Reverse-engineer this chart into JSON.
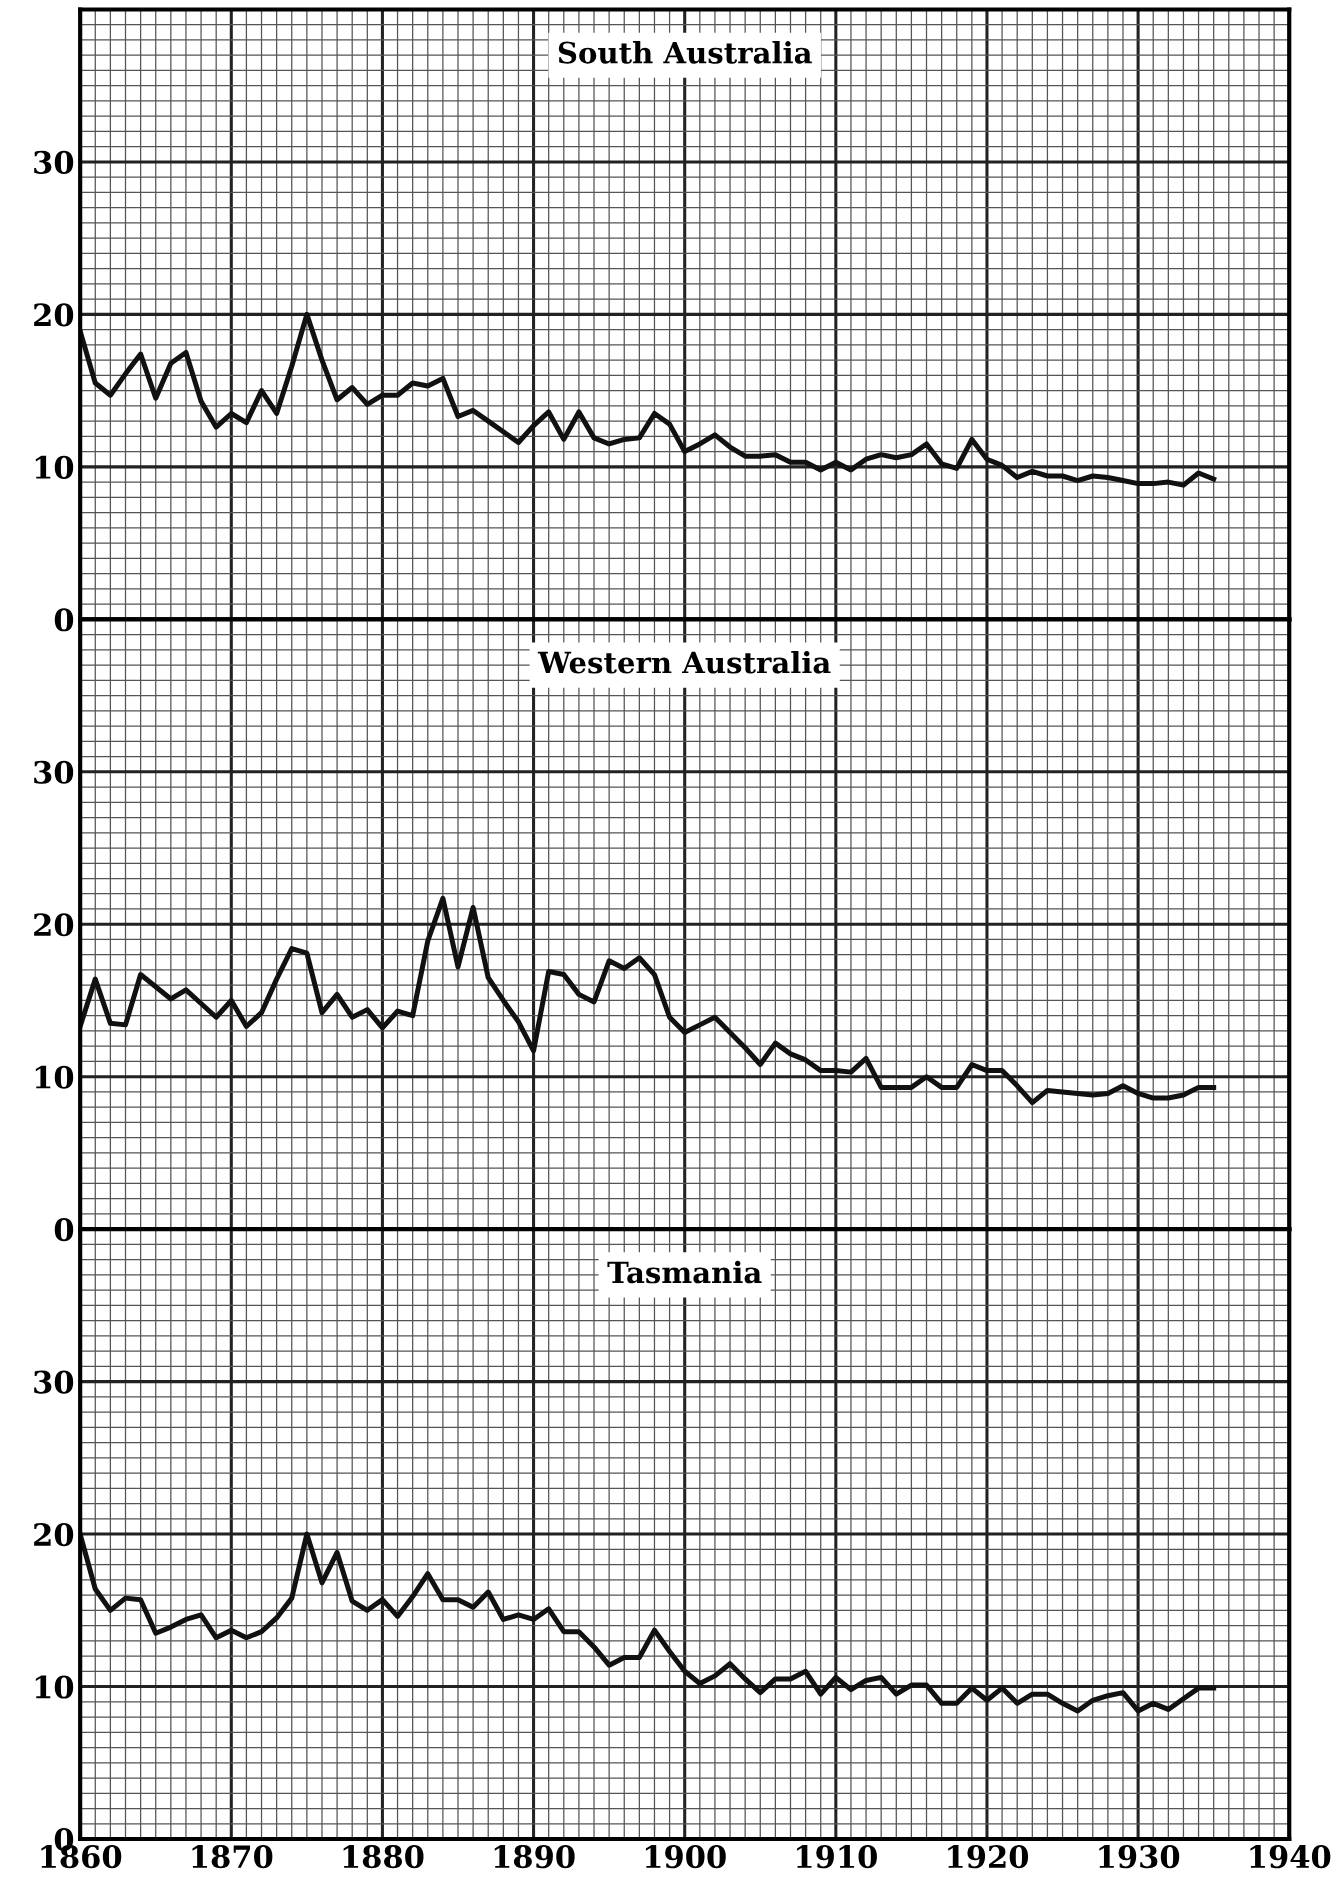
{
  "chart_data": [
    {
      "type": "line",
      "title": "South Australia",
      "x": [
        1860,
        1861,
        1862,
        1863,
        1864,
        1865,
        1866,
        1867,
        1868,
        1869,
        1870,
        1871,
        1872,
        1873,
        1874,
        1875,
        1876,
        1877,
        1878,
        1879,
        1880,
        1881,
        1882,
        1883,
        1884,
        1885,
        1886,
        1887,
        1888,
        1889,
        1890,
        1891,
        1892,
        1893,
        1894,
        1895,
        1896,
        1897,
        1898,
        1899,
        1900,
        1901,
        1902,
        1903,
        1904,
        1905,
        1906,
        1907,
        1908,
        1909,
        1910,
        1911,
        1912,
        1913,
        1914,
        1915,
        1916,
        1917,
        1918,
        1919,
        1920,
        1921,
        1922,
        1923,
        1924,
        1925,
        1926,
        1927,
        1928,
        1929,
        1930,
        1931,
        1932,
        1933,
        1934,
        1935
      ],
      "series": [
        {
          "color": "#111111",
          "values": [
            18.9,
            15.5,
            14.7,
            16.1,
            17.4,
            14.5,
            16.8,
            17.5,
            14.3,
            12.6,
            13.5,
            12.9,
            15.0,
            13.5,
            16.6,
            20,
            17,
            14.4,
            15.2,
            14.1,
            14.7,
            14.7,
            15.5,
            15.3,
            15.8,
            13.3,
            13.7,
            13.0,
            12.3,
            11.6,
            12.7,
            13.6,
            11.8,
            13.6,
            11.9,
            11.5,
            11.8,
            11.9,
            13.5,
            12.8,
            11.0,
            11.5,
            12.1,
            11.3,
            10.7,
            10.7,
            10.8,
            10.3,
            10.3,
            9.8,
            10.3,
            9.8,
            10.5,
            10.8,
            10.6,
            10.8,
            11.5,
            10.2,
            9.9,
            11.8,
            10.5,
            10.1,
            9.3,
            9.7,
            9.4,
            9.4,
            9.1,
            9.4,
            9.3,
            9.1,
            8.9,
            8.9,
            9.0,
            8.8,
            9.6,
            9.2
          ]
        }
      ],
      "xlim": [
        1860,
        1940
      ],
      "xticks": [
        1860,
        1870,
        1880,
        1890,
        1900,
        1910,
        1920,
        1930,
        1940
      ],
      "ylim": [
        0,
        40
      ],
      "yticks": [
        0,
        10,
        20,
        30
      ],
      "grid": true,
      "tick_labels": "y",
      "marker": "none",
      "line_style": "solid"
    },
    {
      "type": "line",
      "title": "Western Australia",
      "x": [
        1860,
        1861,
        1862,
        1863,
        1864,
        1865,
        1866,
        1867,
        1868,
        1869,
        1870,
        1871,
        1872,
        1873,
        1874,
        1875,
        1876,
        1877,
        1878,
        1879,
        1880,
        1881,
        1882,
        1883,
        1884,
        1885,
        1886,
        1887,
        1888,
        1889,
        1890,
        1891,
        1892,
        1893,
        1894,
        1895,
        1896,
        1897,
        1898,
        1899,
        1900,
        1901,
        1902,
        1903,
        1904,
        1905,
        1906,
        1907,
        1908,
        1909,
        1910,
        1911,
        1912,
        1913,
        1914,
        1915,
        1916,
        1917,
        1918,
        1919,
        1920,
        1921,
        1922,
        1923,
        1924,
        1925,
        1926,
        1927,
        1928,
        1929,
        1930,
        1931,
        1932,
        1933,
        1934,
        1935
      ],
      "series": [
        {
          "color": "#111111",
          "values": [
            13.3,
            16.4,
            13.5,
            13.4,
            16.7,
            15.9,
            15.1,
            15.7,
            14.8,
            13.9,
            15.0,
            13.3,
            14.2,
            16.4,
            18.4,
            18.1,
            14.2,
            15.4,
            13.9,
            14.4,
            13.2,
            14.3,
            14.0,
            18.9,
            21.7,
            17.2,
            21.1,
            16.5,
            15.0,
            13.6,
            11.7,
            16.9,
            16.7,
            15.4,
            14.9,
            17.6,
            17.1,
            17.8,
            16.7,
            13.9,
            12.9,
            13.4,
            13.9,
            12.9,
            11.9,
            10.8,
            12.2,
            11.5,
            11.1,
            10.4,
            10.4,
            10.3,
            11.2,
            9.3,
            9.3,
            9.3,
            10.0,
            9.3,
            9.3,
            10.8,
            10.4,
            10.4,
            9.4,
            8.3,
            9.1,
            9.0,
            8.9,
            8.8,
            8.9,
            9.4,
            8.9,
            8.6,
            8.6,
            8.8,
            9.3,
            9.3
          ]
        }
      ],
      "xlim": [
        1860,
        1940
      ],
      "xticks": [
        1860,
        1870,
        1880,
        1890,
        1900,
        1910,
        1920,
        1930,
        1940
      ],
      "ylim": [
        0,
        40
      ],
      "yticks": [
        0,
        10,
        20,
        30
      ],
      "grid": true,
      "tick_labels": "y",
      "marker": "none",
      "line_style": "solid"
    },
    {
      "type": "line",
      "title": "Tasmania",
      "x": [
        1860,
        1861,
        1862,
        1863,
        1864,
        1865,
        1866,
        1867,
        1868,
        1869,
        1870,
        1871,
        1872,
        1873,
        1874,
        1875,
        1876,
        1877,
        1878,
        1879,
        1880,
        1881,
        1882,
        1883,
        1884,
        1885,
        1886,
        1887,
        1888,
        1889,
        1890,
        1891,
        1892,
        1893,
        1894,
        1895,
        1896,
        1897,
        1898,
        1899,
        1900,
        1901,
        1902,
        1903,
        1904,
        1905,
        1906,
        1907,
        1908,
        1909,
        1910,
        1911,
        1912,
        1913,
        1914,
        1915,
        1916,
        1917,
        1918,
        1919,
        1920,
        1921,
        1922,
        1923,
        1924,
        1925,
        1926,
        1927,
        1928,
        1929,
        1930,
        1931,
        1932,
        1933,
        1934,
        1935
      ],
      "series": [
        {
          "color": "#111111",
          "values": [
            20.0,
            16.4,
            15.0,
            15.8,
            15.7,
            13.5,
            13.9,
            14.4,
            14.7,
            13.2,
            13.7,
            13.2,
            13.6,
            14.5,
            15.8,
            20.0,
            16.8,
            18.8,
            15.6,
            15.0,
            15.7,
            14.6,
            15.9,
            17.4,
            15.7,
            15.7,
            15.2,
            16.2,
            14.4,
            14.7,
            14.4,
            15.1,
            13.6,
            13.6,
            12.6,
            11.4,
            11.9,
            11.9,
            13.7,
            12.3,
            11.0,
            10.2,
            10.7,
            11.5,
            10.5,
            9.6,
            10.5,
            10.5,
            11.0,
            9.5,
            10.6,
            9.8,
            10.4,
            10.6,
            9.5,
            10.1,
            10.1,
            8.9,
            8.9,
            9.9,
            9.1,
            9.9,
            8.9,
            9.5,
            9.5,
            8.9,
            8.4,
            9.1,
            9.4,
            9.6,
            8.4,
            8.9,
            8.5,
            9.2,
            9.9,
            9.9
          ]
        }
      ],
      "xlim": [
        1860,
        1940
      ],
      "xticks": [
        1860,
        1870,
        1880,
        1890,
        1900,
        1910,
        1920,
        1930,
        1940
      ],
      "ylim": [
        0,
        40
      ],
      "yticks": [
        0,
        10,
        20,
        30
      ],
      "grid": true,
      "marker": "none",
      "line_style": "solid"
    }
  ]
}
